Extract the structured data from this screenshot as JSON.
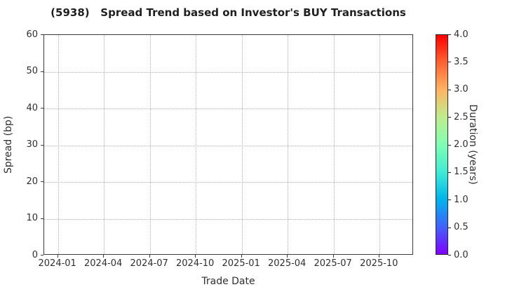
{
  "chart_data": {
    "type": "scatter",
    "title": "(5938)   Spread Trend based on Investor's BUY Transactions",
    "xlabel": "Trade Date",
    "ylabel": "Spread (bp)",
    "x_ticks": [
      "2024-01",
      "2024-04",
      "2024-07",
      "2024-10",
      "2025-01",
      "2025-04",
      "2025-07",
      "2025-10"
    ],
    "y_ticks": [
      0,
      10,
      20,
      30,
      40,
      50,
      60
    ],
    "ylim": [
      0,
      60
    ],
    "grid": "dotted",
    "legend": "none",
    "series": [],
    "points": [],
    "colorbar": {
      "label": "Duration (years)",
      "ticks": [
        "0.0",
        "0.5",
        "1.0",
        "1.5",
        "2.0",
        "2.5",
        "3.0",
        "3.5",
        "4.0"
      ],
      "min": 0.0,
      "max": 4.0,
      "colormap": "rainbow",
      "gradient_stops": [
        "#8000ff",
        "#4062fa",
        "#00b4ec",
        "#40ecd4",
        "#80ffb4",
        "#bfec8e",
        "#ffb462",
        "#ff6232",
        "#ff0000"
      ]
    },
    "colors": {
      "background": "#ffffff",
      "axis": "#3c3c3c",
      "gridline": "#b0b0b0",
      "text": "#2f2f2f",
      "title_text": "#1f1f1f"
    }
  }
}
